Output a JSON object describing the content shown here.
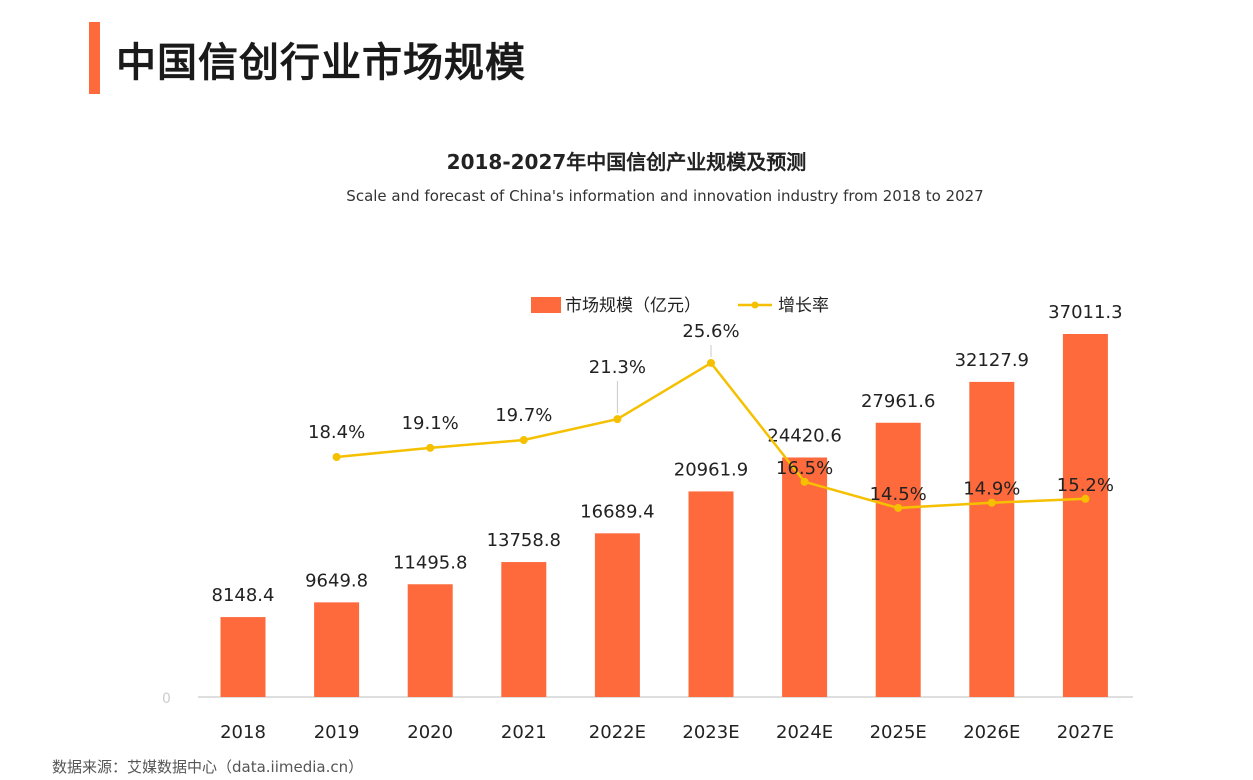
{
  "page": {
    "title": "中国信创行业市场规模",
    "source": "数据来源：艾媒数据中心（data.iimedia.cn）",
    "accent_color": "#ff6a3d"
  },
  "chart_data": {
    "type": "bar",
    "title": "2018-2027年中国信创产业规模及预测",
    "subtitle": "Scale and forecast of China's information and innovation industry from 2018 to 2027",
    "categories": [
      "2018",
      "2019",
      "2020",
      "2021",
      "2022E",
      "2023E",
      "2024E",
      "2025E",
      "2026E",
      "2027E"
    ],
    "series": [
      {
        "name": "市场规模（亿元）",
        "kind": "bar",
        "color": "#ff6a3d",
        "values": [
          8148.4,
          9649.8,
          11495.8,
          13758.8,
          16689.4,
          20961.9,
          24420.6,
          27961.6,
          32127.9,
          37011.3
        ],
        "labels": [
          "8148.4",
          "9649.8",
          "11495.8",
          "13758.8",
          "16689.4",
          "20961.9",
          "24420.6",
          "27961.6",
          "32127.9",
          "37011.3"
        ]
      },
      {
        "name": "增长率",
        "kind": "line",
        "color": "#f5c000",
        "values": [
          null,
          18.4,
          19.1,
          19.7,
          21.3,
          25.6,
          16.5,
          14.5,
          14.9,
          15.2
        ],
        "labels": [
          "",
          "18.4%",
          "19.1%",
          "19.7%",
          "21.3%",
          "25.6%",
          "16.5%",
          "14.5%",
          "14.9%",
          "15.2%"
        ]
      }
    ],
    "axis_zero_label": "0",
    "legend_position": "top-center",
    "grid": false
  }
}
